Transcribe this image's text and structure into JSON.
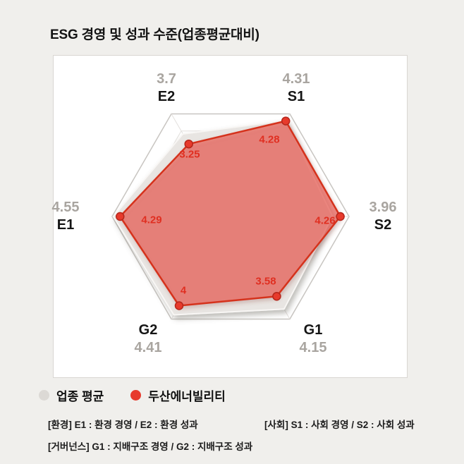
{
  "title": "ESG 경영 및 성과 수준(업종평균대비)",
  "chart_data": {
    "type": "radar",
    "scale": {
      "min": 0,
      "max": 4.6,
      "rings": 6,
      "grid": "hexagonal-web"
    },
    "axes": [
      {
        "label": "E2",
        "angle": 120,
        "industry_avg": 3.7,
        "industry_avg_label": "3.7",
        "company": 3.25,
        "company_label": "3.25"
      },
      {
        "label": "S1",
        "angle": 60,
        "industry_avg": 4.31,
        "industry_avg_label": "4.31",
        "company": 4.28,
        "company_label": "4.28"
      },
      {
        "label": "S2",
        "angle": 0,
        "industry_avg": 3.96,
        "industry_avg_label": "3.96",
        "company": 4.26,
        "company_label": "4.26"
      },
      {
        "label": "G1",
        "angle": 300,
        "industry_avg": 4.15,
        "industry_avg_label": "4.15",
        "company": 3.58,
        "company_label": "3.58"
      },
      {
        "label": "G2",
        "angle": 240,
        "industry_avg": 4.41,
        "industry_avg_label": "4.41",
        "company": 4.0,
        "company_label": "4"
      },
      {
        "label": "E1",
        "angle": 180,
        "industry_avg": 4.55,
        "industry_avg_label": "4.55",
        "company": 4.29,
        "company_label": "4.29"
      }
    ],
    "series": [
      {
        "name": "업종 평균",
        "role": "industry_avg",
        "color": "#dcd9d5",
        "fill": "#e8e5e2"
      },
      {
        "name": "두산에너빌리티",
        "role": "company",
        "color": "#e73a2c",
        "fill": "rgba(236,82,71,0.6)",
        "stroke": "#d5331f"
      }
    ],
    "legend_position": "bottom-left"
  },
  "legend": {
    "items": [
      {
        "label": "업종 평균",
        "color": "#dcd9d5"
      },
      {
        "label": "두산에너빌리티",
        "color": "#e73a2c"
      }
    ]
  },
  "footnotes": {
    "environment": "[환경] E1 : 환경 경영 / E2 : 환경 성과",
    "social": "[사회] S1 : 사회 경영 / S2 : 사회 성과",
    "governance": "[거버넌스] G1 : 지배구조 경영 / G2 : 지배구조 성과"
  },
  "colors": {
    "page_background": "#f0efec",
    "panel_background": "#ffffff",
    "avg_label_gray": "#a9a5a0",
    "company_red": "#e73a2c"
  }
}
